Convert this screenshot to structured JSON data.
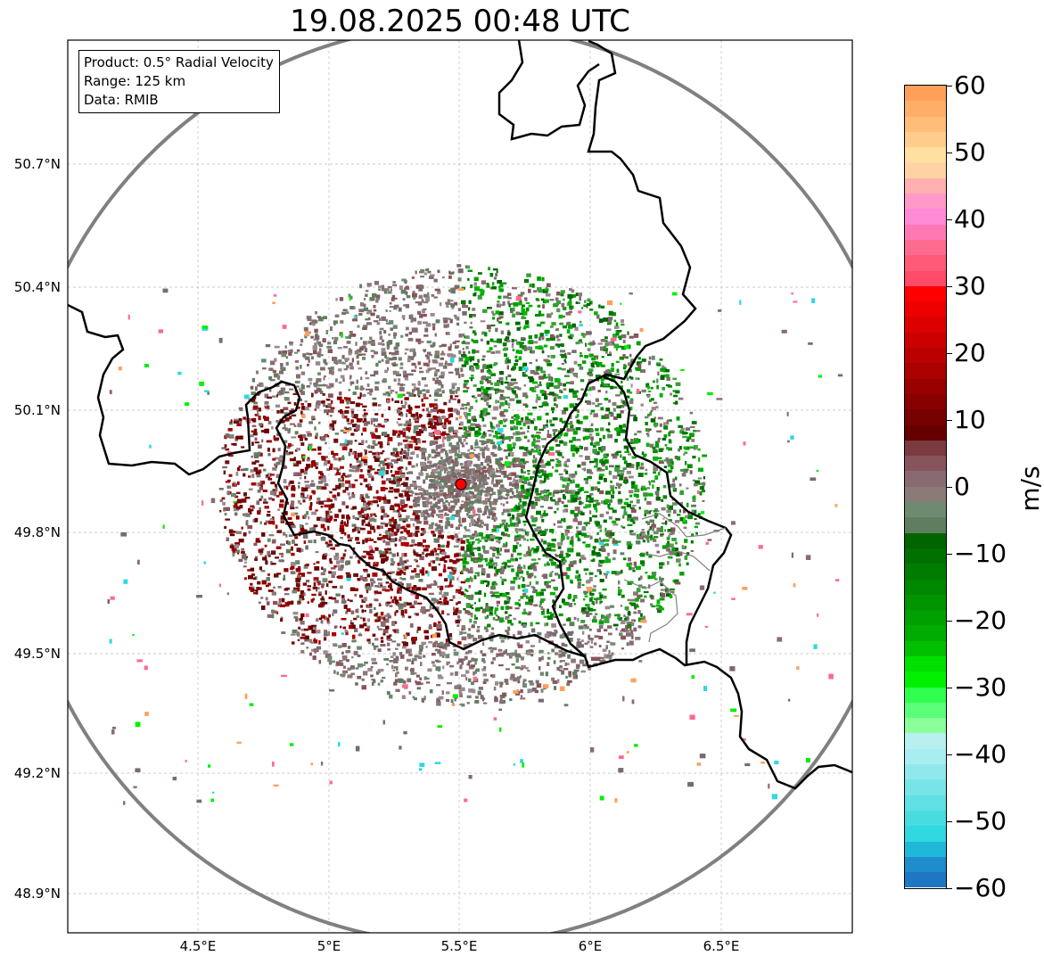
{
  "map": {
    "title": "19.08.2025 00:48 UTC",
    "info": {
      "product": "Product: 0.5° Radial Velocity",
      "range": "Range: 125 km",
      "data": "Data: RMIB"
    },
    "lat_labels": [
      "50.7°N",
      "50.4°N",
      "50.1°N",
      "49.8°N",
      "49.5°N",
      "49.2°N",
      "48.9°N"
    ],
    "lon_labels": [
      "4.5°E",
      "5°E",
      "5.5°E",
      "6°E",
      "6.5°E"
    ],
    "radar_site_color": "#ff0000",
    "range_ring_color": "#808080",
    "border_color": "#000000"
  },
  "colorbar": {
    "unit": "m/s",
    "tick_labels": [
      "60",
      "50",
      "40",
      "30",
      "20",
      "10",
      "0",
      "−10",
      "−20",
      "−30",
      "−40",
      "−50",
      "−60"
    ],
    "colors_top_to_bottom": [
      "#ff9f5a",
      "#ffae6a",
      "#ffbd7a",
      "#ffcc8c",
      "#ffe0a0",
      "#ffd2a6",
      "#ffb0b0",
      "#ff9ac8",
      "#ff8ad6",
      "#ff78b4",
      "#ff6a90",
      "#ff5a78",
      "#ff4a6a",
      "#ff0000",
      "#ee0000",
      "#dd0000",
      "#cc0000",
      "#bb0000",
      "#aa0000",
      "#990000",
      "#880000",
      "#770000",
      "#660000",
      "#7a3a40",
      "#88545c",
      "#8a6a72",
      "#8a7a78",
      "#6e8a70",
      "#5f7e5f",
      "#006400",
      "#007000",
      "#007c00",
      "#008800",
      "#009400",
      "#00a000",
      "#00ac00",
      "#00c000",
      "#00e000",
      "#00f000",
      "#30ff50",
      "#5aff7a",
      "#8aff9a",
      "#b8f0f0",
      "#a8eef0",
      "#90e8ec",
      "#78e4e8",
      "#60e0e4",
      "#48dce0",
      "#30d8e0",
      "#20b8d8",
      "#1f8ccc",
      "#1f77c4"
    ]
  }
}
